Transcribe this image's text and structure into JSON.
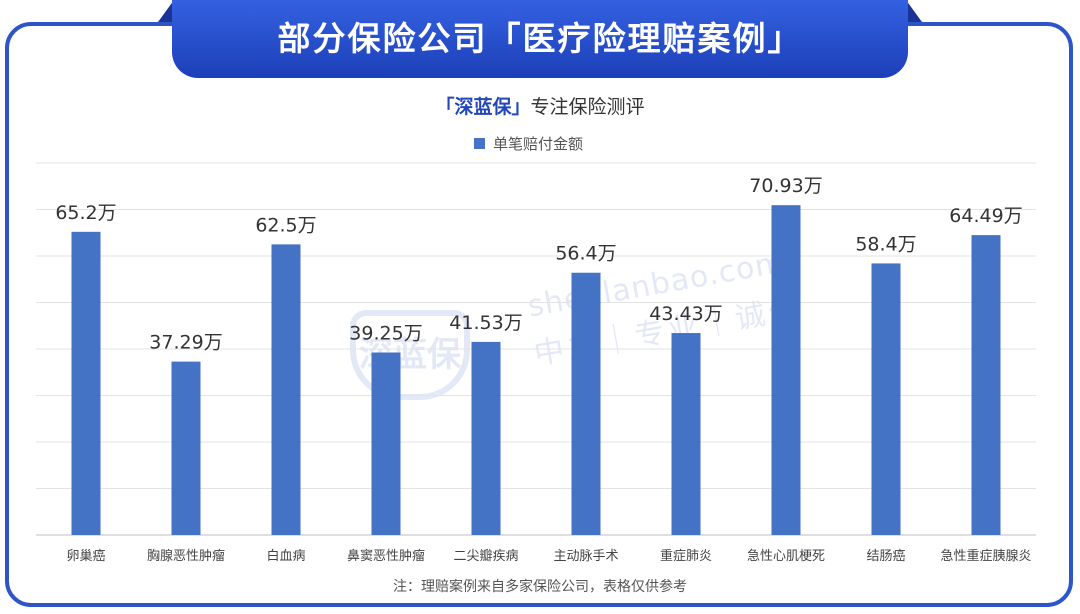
{
  "header": {
    "title": "部分保险公司「医疗险理赔案例」"
  },
  "subtitle": {
    "brand": "「深蓝保」",
    "text": "专注保险测评"
  },
  "watermark": {
    "badge": "深蓝保",
    "domain": "shenlanbao.com",
    "motto": "中立｜专业｜诚信"
  },
  "footnote": "注：理赔案例来自多家保险公司，表格仅供参考",
  "colors": {
    "bar": "#4472c4",
    "frame": "#2d55c7",
    "banner": "#1c3fb8"
  },
  "chart_data": {
    "type": "bar",
    "categories": [
      "卵巢癌",
      "胸腺恶性肿瘤",
      "白血病",
      "鼻窦恶性肿瘤",
      "二尖瓣疾病",
      "主动脉手术",
      "重症肺炎",
      "急性心肌梗死",
      "结肠癌",
      "急性重症胰腺炎"
    ],
    "series": [
      {
        "name": "单笔赔付金额",
        "values": [
          65.2,
          37.29,
          62.5,
          39.25,
          41.53,
          56.4,
          43.43,
          70.93,
          58.4,
          64.49
        ],
        "labels": [
          "65.2万",
          "37.29万",
          "62.5万",
          "39.25万",
          "41.53万",
          "56.4万",
          "43.43万",
          "70.93万",
          "58.4万",
          "64.49万"
        ]
      }
    ],
    "ylim": [
      0,
      80
    ],
    "grid": true,
    "legend": "top-center"
  }
}
